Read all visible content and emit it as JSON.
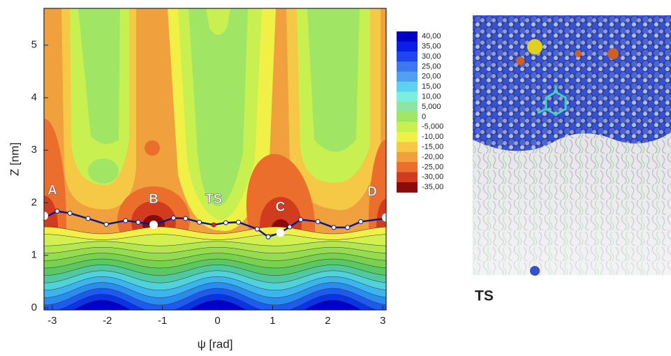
{
  "chart_data": {
    "type": "contour",
    "xlabel": "ψ [rad]",
    "ylabel": "Z [nm]",
    "xlim": [
      -3.15,
      3.06
    ],
    "ylim": [
      -0.04,
      5.7
    ],
    "xticks": [
      -3,
      -2,
      -1,
      0,
      1,
      2,
      3
    ],
    "yticks": [
      0,
      1,
      2,
      3,
      4,
      5
    ],
    "colorbar": {
      "levels": [
        {
          "value": 40,
          "label": "40,00"
        },
        {
          "value": 35,
          "label": "35,00"
        },
        {
          "value": 30,
          "label": "30,00"
        },
        {
          "value": 25,
          "label": "25,00"
        },
        {
          "value": 20,
          "label": "20,00"
        },
        {
          "value": 15,
          "label": "15,00"
        },
        {
          "value": 10,
          "label": "10,00"
        },
        {
          "value": 5,
          "label": "5,000"
        },
        0,
        {
          "value": -5,
          "label": "-5,000"
        },
        {
          "value": -10,
          "label": "-10,00"
        },
        {
          "value": -15,
          "label": "-15,00"
        },
        {
          "value": -20,
          "label": "-20,00"
        },
        {
          "value": -25,
          "label": "-25,00"
        },
        {
          "value": -30,
          "label": "-30,00"
        },
        {
          "value": -35,
          "label": "-35,00"
        }
      ],
      "colors": [
        "#0000c8",
        "#0a1ee6",
        "#1e46f0",
        "#3c78f0",
        "#50a0f0",
        "#5ad2f0",
        "#78f0dc",
        "#8ce6a0",
        "#a0e664",
        "#c8f050",
        "#f0f046",
        "#f5c846",
        "#f0a03c",
        "#eb6e2d",
        "#d23c1e",
        "#8c0a0a"
      ]
    },
    "path": {
      "color": "#0a1a8c",
      "x": [
        -3.15,
        -2.91,
        -2.68,
        -2.35,
        -2.02,
        -1.67,
        -1.44,
        -1.16,
        -0.8,
        -0.58,
        -0.33,
        -0.07,
        0.15,
        0.38,
        0.72,
        0.92,
        1.14,
        1.31,
        1.51,
        1.82,
        2.11,
        2.36,
        2.6,
        3.04
      ],
      "y": [
        1.71,
        1.84,
        1.8,
        1.7,
        1.59,
        1.66,
        1.63,
        1.58,
        1.71,
        1.7,
        1.63,
        1.58,
        1.62,
        1.63,
        1.5,
        1.35,
        1.43,
        1.54,
        1.68,
        1.64,
        1.53,
        1.53,
        1.64,
        1.7
      ]
    },
    "states": {
      "labels": [
        "A",
        "B",
        "TS",
        "C",
        "D"
      ],
      "x": [
        -3.15,
        -1.16,
        -0.07,
        1.14,
        3.06
      ],
      "y": [
        1.75,
        1.58,
        1.58,
        1.43,
        1.72
      ],
      "colors": [
        "#ffffff",
        "#ffffff",
        "#e02020",
        "#ffffff",
        "#ffffff"
      ]
    }
  },
  "image_caption": "TS"
}
